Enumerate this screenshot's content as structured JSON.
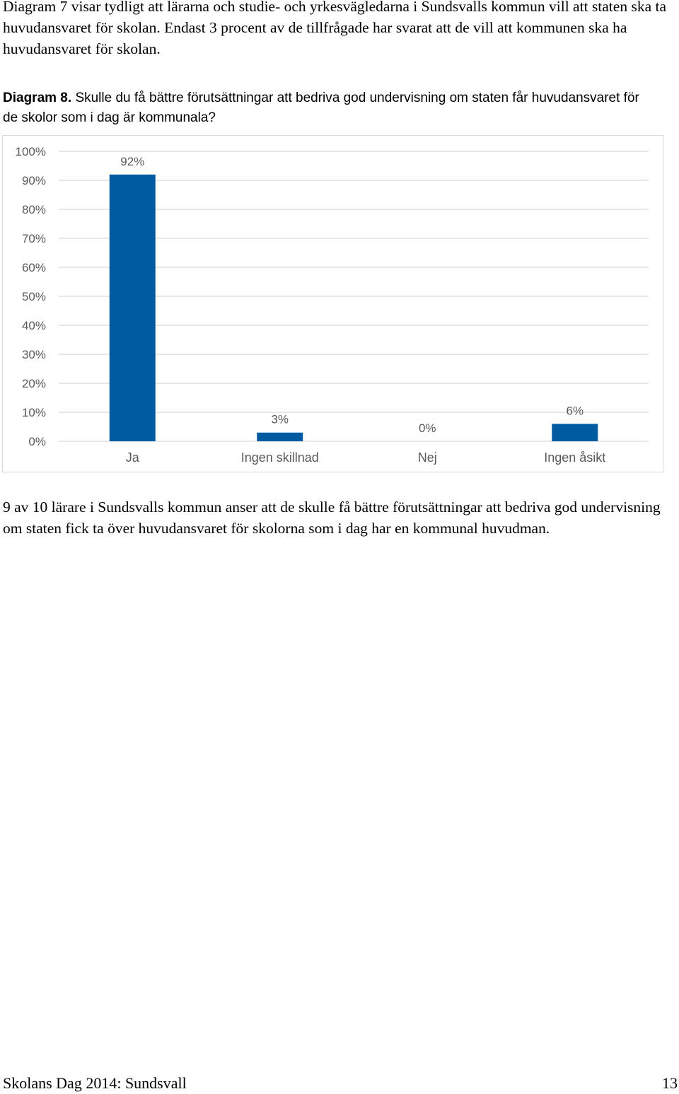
{
  "intro_paragraph": "Diagram 7 visar tydligt att lärarna och studie- och yrkesvägledarna i Sundsvalls kommun vill att staten ska ta huvudansvaret för skolan. Endast 3 procent av de tillfrågade har svarat att de vill att kommunen ska ha huvudansvaret för skolan.",
  "diagram": {
    "label": "Diagram 8.",
    "question": "Skulle du få bättre förutsättningar att bedriva god undervisning om staten får huvudansvaret för de skolor som i dag är kommunala?"
  },
  "chart_data": {
    "type": "bar",
    "categories": [
      "Ja",
      "Ingen skillnad",
      "Nej",
      "Ingen åsikt"
    ],
    "values": [
      92,
      3,
      0,
      6
    ],
    "value_labels": [
      "92%",
      "3%",
      "0%",
      "6%"
    ],
    "y_ticks": [
      "0%",
      "10%",
      "20%",
      "30%",
      "40%",
      "50%",
      "60%",
      "70%",
      "80%",
      "90%",
      "100%"
    ],
    "ylim": [
      0,
      100
    ],
    "grid": true,
    "legend": "none",
    "bar_color": "#005ba1",
    "grid_color": "#d9d9d9",
    "tick_color": "#595959"
  },
  "after_paragraph": "9 av 10 lärare i Sundsvalls kommun anser att de skulle få bättre förutsättningar att bedriva god undervisning om staten fick ta över huvudansvaret för skolorna som i dag har en kommunal huvudman.",
  "footer": {
    "title": "Skolans Dag 2014: Sundsvall",
    "page_number": "13"
  }
}
